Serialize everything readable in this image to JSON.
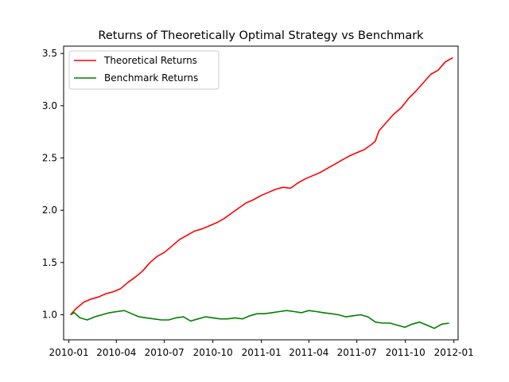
{
  "chart_data": {
    "type": "line",
    "title": "Returns of Theoretically Optimal Strategy vs Benchmark",
    "xlabel": "",
    "ylabel": "",
    "x_range": [
      "2009-12-22",
      "2012-01-09"
    ],
    "ylim": [
      0.76,
      3.57
    ],
    "grid": false,
    "legend_position": "upper-left",
    "x_ticks": [
      {
        "date": "2010-01-01",
        "label": "2010-01"
      },
      {
        "date": "2010-04-01",
        "label": "2010-04"
      },
      {
        "date": "2010-07-01",
        "label": "2010-07"
      },
      {
        "date": "2010-10-01",
        "label": "2010-10"
      },
      {
        "date": "2011-01-01",
        "label": "2011-01"
      },
      {
        "date": "2011-04-01",
        "label": "2011-04"
      },
      {
        "date": "2011-07-01",
        "label": "2011-07"
      },
      {
        "date": "2011-10-01",
        "label": "2011-10"
      },
      {
        "date": "2012-01-01",
        "label": "2012-01"
      }
    ],
    "y_ticks": [
      {
        "value": 1.0,
        "label": "1.0"
      },
      {
        "value": 1.5,
        "label": "1.5"
      },
      {
        "value": 2.0,
        "label": "2.0"
      },
      {
        "value": 2.5,
        "label": "2.5"
      },
      {
        "value": 3.0,
        "label": "3.0"
      },
      {
        "value": 3.5,
        "label": "3.5"
      }
    ],
    "series": [
      {
        "name": "Theoretical Returns",
        "color": "#ff0000",
        "points": [
          [
            "2010-01-04",
            1.0
          ],
          [
            "2010-01-15",
            1.06
          ],
          [
            "2010-01-29",
            1.12
          ],
          [
            "2010-02-12",
            1.15
          ],
          [
            "2010-02-26",
            1.17
          ],
          [
            "2010-03-12",
            1.2
          ],
          [
            "2010-03-26",
            1.22
          ],
          [
            "2010-04-09",
            1.25
          ],
          [
            "2010-04-23",
            1.31
          ],
          [
            "2010-05-07",
            1.36
          ],
          [
            "2010-05-21",
            1.42
          ],
          [
            "2010-06-04",
            1.5
          ],
          [
            "2010-06-18",
            1.56
          ],
          [
            "2010-07-02",
            1.6
          ],
          [
            "2010-07-16",
            1.66
          ],
          [
            "2010-07-30",
            1.72
          ],
          [
            "2010-08-13",
            1.76
          ],
          [
            "2010-08-27",
            1.8
          ],
          [
            "2010-09-10",
            1.82
          ],
          [
            "2010-09-24",
            1.85
          ],
          [
            "2010-10-08",
            1.88
          ],
          [
            "2010-10-22",
            1.92
          ],
          [
            "2010-11-05",
            1.97
          ],
          [
            "2010-11-19",
            2.02
          ],
          [
            "2010-12-03",
            2.07
          ],
          [
            "2010-12-17",
            2.1
          ],
          [
            "2010-12-31",
            2.14
          ],
          [
            "2011-01-14",
            2.17
          ],
          [
            "2011-01-28",
            2.2
          ],
          [
            "2011-02-11",
            2.22
          ],
          [
            "2011-02-25",
            2.21
          ],
          [
            "2011-03-11",
            2.26
          ],
          [
            "2011-03-25",
            2.3
          ],
          [
            "2011-04-08",
            2.33
          ],
          [
            "2011-04-22",
            2.36
          ],
          [
            "2011-05-06",
            2.4
          ],
          [
            "2011-05-20",
            2.44
          ],
          [
            "2011-06-03",
            2.48
          ],
          [
            "2011-06-17",
            2.52
          ],
          [
            "2011-07-01",
            2.55
          ],
          [
            "2011-07-15",
            2.58
          ],
          [
            "2011-07-29",
            2.63
          ],
          [
            "2011-08-05",
            2.66
          ],
          [
            "2011-08-12",
            2.76
          ],
          [
            "2011-08-26",
            2.84
          ],
          [
            "2011-09-09",
            2.92
          ],
          [
            "2011-09-23",
            2.98
          ],
          [
            "2011-10-07",
            3.07
          ],
          [
            "2011-10-21",
            3.14
          ],
          [
            "2011-11-04",
            3.22
          ],
          [
            "2011-11-18",
            3.3
          ],
          [
            "2011-12-02",
            3.34
          ],
          [
            "2011-12-16",
            3.42
          ],
          [
            "2011-12-30",
            3.46
          ]
        ]
      },
      {
        "name": "Benchmark Returns",
        "color": "#008000",
        "points": [
          [
            "2010-01-04",
            1.0
          ],
          [
            "2010-01-11",
            1.02
          ],
          [
            "2010-01-22",
            0.97
          ],
          [
            "2010-02-05",
            0.95
          ],
          [
            "2010-02-19",
            0.98
          ],
          [
            "2010-03-05",
            1.0
          ],
          [
            "2010-03-19",
            1.02
          ],
          [
            "2010-04-02",
            1.03
          ],
          [
            "2010-04-16",
            1.04
          ],
          [
            "2010-04-30",
            1.01
          ],
          [
            "2010-05-14",
            0.98
          ],
          [
            "2010-05-28",
            0.97
          ],
          [
            "2010-06-11",
            0.96
          ],
          [
            "2010-06-25",
            0.95
          ],
          [
            "2010-07-09",
            0.95
          ],
          [
            "2010-07-23",
            0.97
          ],
          [
            "2010-08-06",
            0.98
          ],
          [
            "2010-08-20",
            0.94
          ],
          [
            "2010-09-03",
            0.96
          ],
          [
            "2010-09-17",
            0.98
          ],
          [
            "2010-10-01",
            0.97
          ],
          [
            "2010-10-15",
            0.96
          ],
          [
            "2010-10-29",
            0.96
          ],
          [
            "2010-11-12",
            0.97
          ],
          [
            "2010-11-26",
            0.96
          ],
          [
            "2010-12-10",
            0.99
          ],
          [
            "2010-12-24",
            1.01
          ],
          [
            "2011-01-07",
            1.01
          ],
          [
            "2011-01-21",
            1.02
          ],
          [
            "2011-02-04",
            1.03
          ],
          [
            "2011-02-18",
            1.04
          ],
          [
            "2011-03-04",
            1.03
          ],
          [
            "2011-03-18",
            1.02
          ],
          [
            "2011-04-01",
            1.04
          ],
          [
            "2011-04-15",
            1.03
          ],
          [
            "2011-04-29",
            1.02
          ],
          [
            "2011-05-13",
            1.01
          ],
          [
            "2011-05-27",
            1.0
          ],
          [
            "2011-06-10",
            0.98
          ],
          [
            "2011-06-24",
            0.99
          ],
          [
            "2011-07-08",
            1.0
          ],
          [
            "2011-07-22",
            0.98
          ],
          [
            "2011-08-05",
            0.93
          ],
          [
            "2011-08-19",
            0.92
          ],
          [
            "2011-09-02",
            0.92
          ],
          [
            "2011-09-16",
            0.9
          ],
          [
            "2011-09-30",
            0.88
          ],
          [
            "2011-10-14",
            0.91
          ],
          [
            "2011-10-28",
            0.93
          ],
          [
            "2011-11-11",
            0.9
          ],
          [
            "2011-11-25",
            0.87
          ],
          [
            "2011-12-09",
            0.91
          ],
          [
            "2011-12-23",
            0.92
          ]
        ]
      }
    ]
  }
}
